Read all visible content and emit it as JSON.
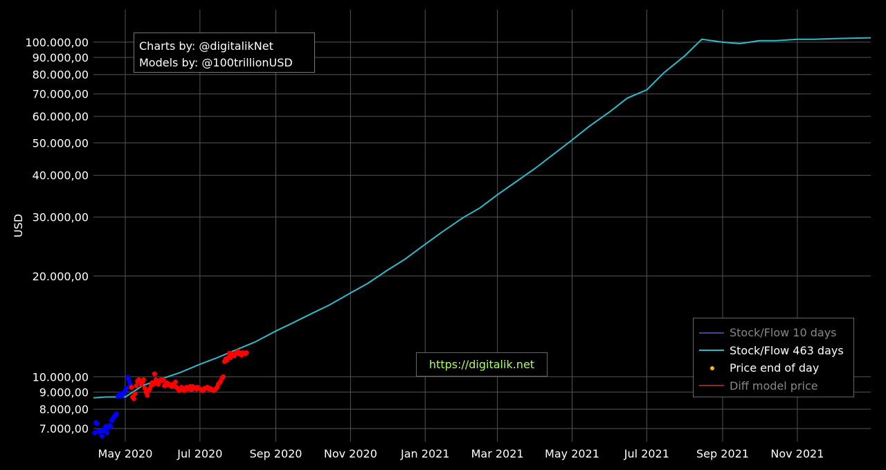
{
  "credits": {
    "line1": "Charts by: @digitalikNet",
    "line2": "Models by: @100trillionUSD"
  },
  "url": "https://digitalik.net",
  "legend": [
    {
      "label": "Stock/Flow 10 days",
      "color": "#4a3f9a",
      "kind": "line",
      "dim": true
    },
    {
      "label": "Stock/Flow 463 days",
      "color": "#2bbccc",
      "kind": "line",
      "dim": false
    },
    {
      "label": "Price end of day",
      "color": "#ffb020",
      "kind": "dot",
      "dim": false
    },
    {
      "label": "Diff model price",
      "color": "#8a2a2a",
      "kind": "line",
      "dim": true
    }
  ],
  "colors": {
    "background": "#000000",
    "grid": "#555555",
    "model_line": "#2bbccc",
    "price_low": "#0000ff",
    "price_high": "#ff0000"
  },
  "chart_data": {
    "type": "line",
    "ylabel": "USD",
    "yscale": "log",
    "ylim": [
      6400,
      125000
    ],
    "xlim": [
      "2020-04-05",
      "2021-12-31"
    ],
    "grid": true,
    "legend_position": "bottom-right",
    "yticks": [
      {
        "value": 7000,
        "label": "7.000,00"
      },
      {
        "value": 8000,
        "label": "8.000,00"
      },
      {
        "value": 9000,
        "label": "9.000,00"
      },
      {
        "value": 10000,
        "label": "10.000,00"
      },
      {
        "value": 20000,
        "label": "20.000,00"
      },
      {
        "value": 30000,
        "label": "30.000,00"
      },
      {
        "value": 40000,
        "label": "40.000,00"
      },
      {
        "value": 50000,
        "label": "50.000,00"
      },
      {
        "value": 60000,
        "label": "60.000,00"
      },
      {
        "value": 70000,
        "label": "70.000,00"
      },
      {
        "value": 80000,
        "label": "80.000,00"
      },
      {
        "value": 90000,
        "label": "90.000,00"
      },
      {
        "value": 100000,
        "label": "100.000,00"
      }
    ],
    "xticks": [
      {
        "date": "2020-05-01",
        "label": "May 2020"
      },
      {
        "date": "2020-07-01",
        "label": "Jul 2020"
      },
      {
        "date": "2020-09-01",
        "label": "Sep 2020"
      },
      {
        "date": "2020-11-01",
        "label": "Nov 2020"
      },
      {
        "date": "2021-01-01",
        "label": "Jan 2021"
      },
      {
        "date": "2021-03-01",
        "label": "Mar 2021"
      },
      {
        "date": "2021-05-01",
        "label": "May 2021"
      },
      {
        "date": "2021-07-01",
        "label": "Jul 2021"
      },
      {
        "date": "2021-09-01",
        "label": "Sep 2021"
      },
      {
        "date": "2021-11-01",
        "label": "Nov 2021"
      }
    ],
    "series": [
      {
        "name": "Stock/Flow 463 days",
        "kind": "line",
        "points": [
          [
            "2020-04-05",
            8650
          ],
          [
            "2020-04-15",
            8700
          ],
          [
            "2020-05-01",
            8700
          ],
          [
            "2020-05-15",
            9400
          ],
          [
            "2020-06-01",
            9900
          ],
          [
            "2020-06-15",
            10300
          ],
          [
            "2020-07-01",
            10900
          ],
          [
            "2020-07-15",
            11400
          ],
          [
            "2020-08-01",
            12100
          ],
          [
            "2020-08-15",
            12700
          ],
          [
            "2020-09-01",
            13700
          ],
          [
            "2020-09-15",
            14500
          ],
          [
            "2020-10-01",
            15500
          ],
          [
            "2020-10-15",
            16400
          ],
          [
            "2020-11-01",
            17800
          ],
          [
            "2020-11-15",
            19000
          ],
          [
            "2020-12-01",
            20800
          ],
          [
            "2020-12-15",
            22400
          ],
          [
            "2021-01-01",
            24900
          ],
          [
            "2021-01-15",
            27100
          ],
          [
            "2021-02-01",
            29900
          ],
          [
            "2021-02-15",
            32000
          ],
          [
            "2021-03-01",
            35000
          ],
          [
            "2021-03-15",
            38000
          ],
          [
            "2021-04-01",
            42000
          ],
          [
            "2021-04-15",
            46000
          ],
          [
            "2021-05-01",
            51000
          ],
          [
            "2021-05-15",
            56000
          ],
          [
            "2021-06-01",
            62000
          ],
          [
            "2021-06-15",
            68000
          ],
          [
            "2021-07-01",
            72000
          ],
          [
            "2021-07-15",
            81000
          ],
          [
            "2021-08-01",
            91000
          ],
          [
            "2021-08-15",
            102000
          ],
          [
            "2021-09-01",
            100000
          ],
          [
            "2021-09-15",
            99000
          ],
          [
            "2021-10-01",
            101000
          ],
          [
            "2021-10-15",
            101000
          ],
          [
            "2021-11-01",
            102000
          ],
          [
            "2021-11-15",
            102000
          ],
          [
            "2021-12-01",
            102500
          ],
          [
            "2021-12-31",
            103000
          ]
        ]
      },
      {
        "name": "Price end of day",
        "kind": "scatter",
        "points": [
          [
            "2020-04-06",
            6800
          ],
          [
            "2020-04-07",
            7300
          ],
          [
            "2020-04-08",
            7250
          ],
          [
            "2020-04-09",
            6870
          ],
          [
            "2020-04-10",
            6850
          ],
          [
            "2020-04-11",
            6880
          ],
          [
            "2020-04-12",
            6650
          ],
          [
            "2020-04-13",
            6900
          ],
          [
            "2020-04-14",
            7000
          ],
          [
            "2020-04-15",
            7100
          ],
          [
            "2020-04-16",
            6800
          ],
          [
            "2020-04-17",
            7050
          ],
          [
            "2020-04-18",
            7150
          ],
          [
            "2020-04-19",
            7100
          ],
          [
            "2020-04-20",
            7400
          ],
          [
            "2020-04-21",
            7500
          ],
          [
            "2020-04-22",
            7600
          ],
          [
            "2020-04-23",
            7700
          ],
          [
            "2020-04-24",
            7750
          ],
          [
            "2020-04-25",
            8750
          ],
          [
            "2020-04-26",
            8800
          ],
          [
            "2020-04-27",
            8900
          ],
          [
            "2020-04-28",
            8750
          ],
          [
            "2020-04-29",
            8900
          ],
          [
            "2020-04-30",
            8950
          ],
          [
            "2020-05-01",
            9100
          ],
          [
            "2020-05-02",
            9250
          ],
          [
            "2020-05-03",
            9950
          ],
          [
            "2020-05-04",
            9750
          ],
          [
            "2020-05-05",
            9500
          ],
          [
            "2020-05-06",
            9300
          ],
          [
            "2020-05-07",
            8700
          ],
          [
            "2020-05-08",
            8600
          ],
          [
            "2020-05-09",
            8900
          ],
          [
            "2020-05-10",
            9400
          ],
          [
            "2020-05-11",
            9700
          ],
          [
            "2020-05-12",
            9800
          ],
          [
            "2020-05-13",
            9750
          ],
          [
            "2020-05-14",
            9500
          ],
          [
            "2020-05-15",
            9600
          ],
          [
            "2020-05-16",
            9800
          ],
          [
            "2020-05-17",
            9250
          ],
          [
            "2020-05-18",
            9000
          ],
          [
            "2020-05-19",
            8800
          ],
          [
            "2020-05-20",
            9100
          ],
          [
            "2020-05-21",
            9200
          ],
          [
            "2020-05-22",
            9400
          ],
          [
            "2020-05-23",
            9600
          ],
          [
            "2020-05-24",
            9500
          ],
          [
            "2020-05-25",
            10200
          ],
          [
            "2020-05-26",
            9800
          ],
          [
            "2020-05-27",
            9700
          ],
          [
            "2020-05-28",
            9500
          ],
          [
            "2020-05-29",
            9700
          ],
          [
            "2020-05-30",
            9800
          ],
          [
            "2020-05-31",
            9750
          ],
          [
            "2020-06-01",
            9800
          ],
          [
            "2020-06-02",
            9400
          ],
          [
            "2020-06-03",
            9500
          ],
          [
            "2020-06-04",
            9600
          ],
          [
            "2020-06-05",
            9450
          ],
          [
            "2020-06-06",
            9500
          ],
          [
            "2020-06-07",
            9400
          ],
          [
            "2020-06-08",
            9350
          ],
          [
            "2020-06-09",
            9500
          ],
          [
            "2020-06-10",
            9400
          ],
          [
            "2020-06-11",
            9650
          ],
          [
            "2020-06-12",
            9300
          ],
          [
            "2020-06-13",
            9200
          ],
          [
            "2020-06-14",
            9100
          ],
          [
            "2020-06-15",
            9150
          ],
          [
            "2020-06-16",
            9300
          ],
          [
            "2020-06-17",
            9200
          ],
          [
            "2020-06-18",
            9100
          ],
          [
            "2020-06-19",
            9250
          ],
          [
            "2020-06-20",
            9300
          ],
          [
            "2020-06-21",
            9200
          ],
          [
            "2020-06-22",
            9250
          ],
          [
            "2020-06-23",
            9350
          ],
          [
            "2020-06-24",
            9150
          ],
          [
            "2020-06-25",
            9350
          ],
          [
            "2020-06-26",
            9300
          ],
          [
            "2020-06-27",
            9250
          ],
          [
            "2020-06-28",
            9200
          ],
          [
            "2020-06-29",
            9300
          ],
          [
            "2020-06-30",
            9250
          ],
          [
            "2020-07-01",
            9200
          ],
          [
            "2020-07-02",
            9150
          ],
          [
            "2020-07-03",
            9100
          ],
          [
            "2020-07-04",
            9150
          ],
          [
            "2020-07-05",
            9250
          ],
          [
            "2020-07-06",
            9250
          ],
          [
            "2020-07-07",
            9300
          ],
          [
            "2020-07-08",
            9200
          ],
          [
            "2020-07-09",
            9250
          ],
          [
            "2020-07-10",
            9200
          ],
          [
            "2020-07-11",
            9150
          ],
          [
            "2020-07-12",
            9100
          ],
          [
            "2020-07-13",
            9150
          ],
          [
            "2020-07-14",
            9200
          ],
          [
            "2020-07-15",
            9300
          ],
          [
            "2020-07-16",
            9500
          ],
          [
            "2020-07-17",
            9600
          ],
          [
            "2020-07-18",
            9700
          ],
          [
            "2020-07-19",
            9900
          ],
          [
            "2020-07-20",
            10000
          ],
          [
            "2020-07-21",
            11100
          ],
          [
            "2020-07-22",
            11300
          ],
          [
            "2020-07-23",
            11200
          ],
          [
            "2020-07-24",
            11400
          ],
          [
            "2020-07-25",
            11750
          ],
          [
            "2020-07-26",
            11400
          ],
          [
            "2020-07-27",
            11700
          ],
          [
            "2020-07-28",
            11600
          ],
          [
            "2020-07-29",
            11550
          ],
          [
            "2020-07-30",
            11700
          ],
          [
            "2020-07-31",
            11800
          ],
          [
            "2020-08-01",
            11900
          ],
          [
            "2020-08-02",
            11700
          ],
          [
            "2020-08-03",
            11750
          ],
          [
            "2020-08-04",
            11600
          ],
          [
            "2020-08-05",
            11800
          ],
          [
            "2020-08-06",
            11750
          ],
          [
            "2020-08-07",
            11700
          ],
          [
            "2020-08-08",
            11800
          ]
        ]
      }
    ]
  }
}
